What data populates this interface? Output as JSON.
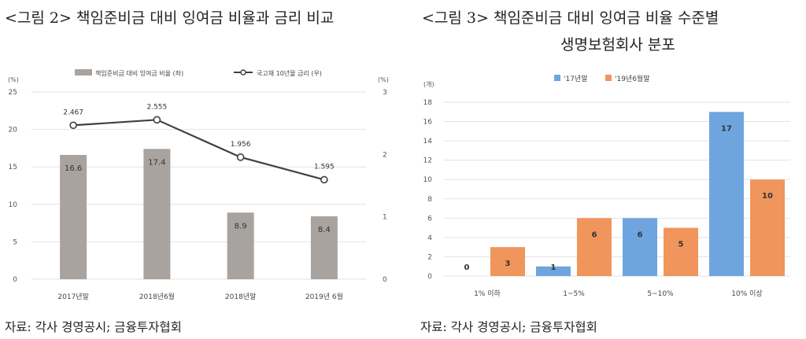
{
  "left": {
    "title": "<그림 2> 책임준비금 대비 잉여금 비율과 금리 비교",
    "source": "자료: 각사 경영공시; 금융투자협회"
  },
  "right": {
    "title_line1": "<그림 3> 책임준비금 대비 잉여금 비율 수준별",
    "title_line2": "생명보험회사 분포",
    "source": "자료: 각사 경영공시; 금융투자협회"
  },
  "chart_data": [
    {
      "type": "bar",
      "categories": [
        "2017년말",
        "2018년6월",
        "2018년말",
        "2019년 6월"
      ],
      "series": [
        {
          "name": "책임준비금 대비 잉여금 비율 (좌)",
          "type": "bar",
          "axis": "left",
          "values": [
            16.6,
            17.4,
            8.9,
            8.4
          ],
          "color": "#a8a39f"
        },
        {
          "name": "국고채 10년물 금리 (우)",
          "type": "line",
          "axis": "right",
          "values": [
            2.467,
            2.555,
            1.956,
            1.595
          ],
          "color": "#404040"
        }
      ],
      "y_left": {
        "unit": "(%)",
        "ylim": [
          0,
          25
        ],
        "ticks": [
          0,
          5,
          10,
          15,
          20,
          25
        ]
      },
      "y_right": {
        "unit": "(%)",
        "ylim": [
          0,
          3
        ],
        "ticks": [
          0,
          1,
          2,
          3
        ]
      },
      "grid": true,
      "legend": "top"
    },
    {
      "type": "bar",
      "categories": [
        "1% 이하",
        "1~5%",
        "5~10%",
        "10% 이상"
      ],
      "series": [
        {
          "name": "'17년말",
          "values": [
            0,
            1,
            6,
            17
          ],
          "color": "#6fa5df"
        },
        {
          "name": "'19년6월말",
          "values": [
            3,
            6,
            5,
            10
          ],
          "color": "#f0955c"
        }
      ],
      "y_left": {
        "unit": "(개)",
        "ylim": [
          0,
          18
        ],
        "ticks": [
          0,
          2,
          4,
          6,
          8,
          10,
          12,
          14,
          16,
          18
        ]
      },
      "grid": true,
      "legend": "top"
    }
  ]
}
